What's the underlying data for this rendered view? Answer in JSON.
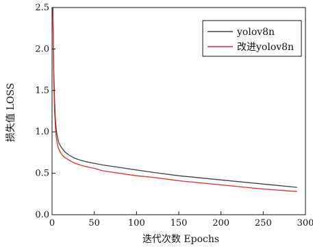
{
  "chart_data": {
    "type": "line",
    "xlabel": "迭代次数 Epochs",
    "ylabel": "损失值 LOSS",
    "xlim": [
      0,
      300
    ],
    "ylim": [
      0.0,
      2.5
    ],
    "x_ticks": [
      "0",
      "50",
      "100",
      "150",
      "200",
      "250",
      "300"
    ],
    "y_ticks": [
      "0.0",
      "0.5",
      "1.0",
      "1.5",
      "2.0",
      "2.5"
    ],
    "grid": false,
    "legend_position": "top-right",
    "series": [
      {
        "name": "yolov8n",
        "color": "#404040",
        "x": [
          1,
          2,
          3,
          4,
          5,
          6,
          7,
          8,
          10,
          12,
          15,
          20,
          25,
          30,
          40,
          50,
          60,
          80,
          100,
          120,
          150,
          200,
          250,
          290
        ],
        "y": [
          2.5,
          1.75,
          1.38,
          1.15,
          1.02,
          0.96,
          0.91,
          0.87,
          0.83,
          0.8,
          0.76,
          0.72,
          0.69,
          0.67,
          0.64,
          0.62,
          0.6,
          0.57,
          0.54,
          0.51,
          0.47,
          0.42,
          0.37,
          0.33
        ]
      },
      {
        "name": "改进yolov8n",
        "color": "#e8262a",
        "x": [
          1,
          2,
          3,
          4,
          5,
          6,
          7,
          8,
          10,
          12,
          15,
          20,
          25,
          30,
          40,
          50,
          60,
          80,
          100,
          120,
          150,
          200,
          250,
          290
        ],
        "y": [
          2.45,
          1.6,
          1.25,
          1.05,
          0.93,
          0.87,
          0.82,
          0.79,
          0.75,
          0.72,
          0.69,
          0.66,
          0.63,
          0.61,
          0.58,
          0.56,
          0.53,
          0.5,
          0.47,
          0.45,
          0.41,
          0.36,
          0.31,
          0.28
        ]
      }
    ]
  }
}
